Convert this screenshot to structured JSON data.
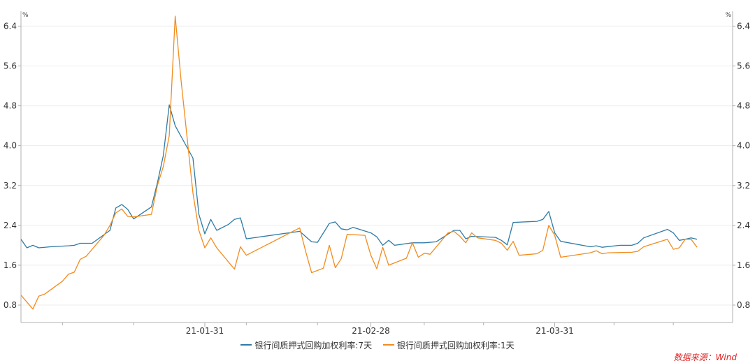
{
  "chart_data": {
    "type": "line",
    "title": "",
    "unit_left": "%",
    "unit_right": "%",
    "ylim": [
      0.45,
      6.7
    ],
    "yticks": [
      0.8,
      1.6,
      2.4,
      3.2,
      4.0,
      4.8,
      5.6,
      6.4
    ],
    "xlim": [
      "2020-12-31",
      "2021-04-30"
    ],
    "xticks": [
      {
        "date": "2021-01-31",
        "label": "21-01-31"
      },
      {
        "date": "2021-02-28",
        "label": "21-02-28"
      },
      {
        "date": "2021-03-31",
        "label": "21-03-31"
      }
    ],
    "minor_xticks": [
      "2021-01-07",
      "2021-01-19",
      "2021-02-07",
      "2021-02-19",
      "2021-03-09",
      "2021-03-19",
      "2021-04-10",
      "2021-04-20"
    ],
    "grid": true,
    "legend_position": "bottom",
    "series": [
      {
        "name": "银行间质押式回购加权利率:7天",
        "color": "#2e7ba6",
        "points": [
          [
            "2020-12-31",
            2.12
          ],
          [
            "2021-01-01",
            1.95
          ],
          [
            "2021-01-02",
            2.0
          ],
          [
            "2021-01-03",
            1.95
          ],
          [
            "2021-01-05",
            1.97
          ],
          [
            "2021-01-08",
            1.99
          ],
          [
            "2021-01-09",
            2.0
          ],
          [
            "2021-01-10",
            2.04
          ],
          [
            "2021-01-12",
            2.04
          ],
          [
            "2021-01-15",
            2.3
          ],
          [
            "2021-01-16",
            2.75
          ],
          [
            "2021-01-17",
            2.82
          ],
          [
            "2021-01-18",
            2.72
          ],
          [
            "2021-01-19",
            2.53
          ],
          [
            "2021-01-22",
            2.77
          ],
          [
            "2021-01-23",
            3.25
          ],
          [
            "2021-01-24",
            3.8
          ],
          [
            "2021-01-25",
            4.82
          ],
          [
            "2021-01-26",
            4.4
          ],
          [
            "2021-01-29",
            3.75
          ],
          [
            "2021-01-30",
            2.62
          ],
          [
            "2021-01-31",
            2.23
          ],
          [
            "2021-02-01",
            2.52
          ],
          [
            "2021-02-02",
            2.3
          ],
          [
            "2021-02-04",
            2.42
          ],
          [
            "2021-02-05",
            2.52
          ],
          [
            "2021-02-06",
            2.55
          ],
          [
            "2021-02-07",
            2.13
          ],
          [
            "2021-02-16",
            2.28
          ],
          [
            "2021-02-18",
            2.07
          ],
          [
            "2021-02-19",
            2.06
          ],
          [
            "2021-02-21",
            2.44
          ],
          [
            "2021-02-22",
            2.47
          ],
          [
            "2021-02-23",
            2.33
          ],
          [
            "2021-02-24",
            2.31
          ],
          [
            "2021-02-25",
            2.36
          ],
          [
            "2021-02-28",
            2.25
          ],
          [
            "2021-03-01",
            2.17
          ],
          [
            "2021-03-02",
            2.0
          ],
          [
            "2021-03-03",
            2.1
          ],
          [
            "2021-03-04",
            2.0
          ],
          [
            "2021-03-07",
            2.05
          ],
          [
            "2021-03-09",
            2.05
          ],
          [
            "2021-03-11",
            2.07
          ],
          [
            "2021-03-14",
            2.3
          ],
          [
            "2021-03-15",
            2.3
          ],
          [
            "2021-03-16",
            2.13
          ],
          [
            "2021-03-17",
            2.18
          ],
          [
            "2021-03-21",
            2.16
          ],
          [
            "2021-03-22",
            2.1
          ],
          [
            "2021-03-23",
            2.01
          ],
          [
            "2021-03-24",
            2.46
          ],
          [
            "2021-03-28",
            2.48
          ],
          [
            "2021-03-29",
            2.52
          ],
          [
            "2021-03-30",
            2.68
          ],
          [
            "2021-03-31",
            2.25
          ],
          [
            "2021-04-01",
            2.08
          ],
          [
            "2021-04-06",
            1.97
          ],
          [
            "2021-04-07",
            1.99
          ],
          [
            "2021-04-08",
            1.96
          ],
          [
            "2021-04-11",
            2.0
          ],
          [
            "2021-04-13",
            2.0
          ],
          [
            "2021-04-14",
            2.04
          ],
          [
            "2021-04-15",
            2.15
          ],
          [
            "2021-04-19",
            2.32
          ],
          [
            "2021-04-20",
            2.25
          ],
          [
            "2021-04-21",
            2.1
          ],
          [
            "2021-04-22",
            2.12
          ],
          [
            "2021-04-23",
            2.15
          ],
          [
            "2021-04-24",
            2.12
          ]
        ]
      },
      {
        "name": "银行间质押式回购加权利率:1天",
        "color": "#f28c1d",
        "points": [
          [
            "2020-12-31",
            1.0
          ],
          [
            "2021-01-02",
            0.72
          ],
          [
            "2021-01-03",
            0.98
          ],
          [
            "2021-01-04",
            1.02
          ],
          [
            "2021-01-07",
            1.28
          ],
          [
            "2021-01-08",
            1.42
          ],
          [
            "2021-01-09",
            1.46
          ],
          [
            "2021-01-10",
            1.72
          ],
          [
            "2021-01-11",
            1.78
          ],
          [
            "2021-01-14",
            2.2
          ],
          [
            "2021-01-15",
            2.4
          ],
          [
            "2021-01-16",
            2.65
          ],
          [
            "2021-01-17",
            2.73
          ],
          [
            "2021-01-18",
            2.58
          ],
          [
            "2021-01-19",
            2.57
          ],
          [
            "2021-01-22",
            2.62
          ],
          [
            "2021-01-23",
            3.2
          ],
          [
            "2021-01-24",
            3.58
          ],
          [
            "2021-01-25",
            4.2
          ],
          [
            "2021-01-26",
            6.6
          ],
          [
            "2021-01-27",
            5.3
          ],
          [
            "2021-01-29",
            3.05
          ],
          [
            "2021-01-30",
            2.3
          ],
          [
            "2021-01-31",
            1.95
          ],
          [
            "2021-02-01",
            2.15
          ],
          [
            "2021-02-02",
            1.95
          ],
          [
            "2021-02-05",
            1.52
          ],
          [
            "2021-02-06",
            1.97
          ],
          [
            "2021-02-07",
            1.8
          ],
          [
            "2021-02-16",
            2.35
          ],
          [
            "2021-02-17",
            1.88
          ],
          [
            "2021-02-18",
            1.45
          ],
          [
            "2021-02-20",
            1.54
          ],
          [
            "2021-02-21",
            2.0
          ],
          [
            "2021-02-22",
            1.55
          ],
          [
            "2021-02-23",
            1.73
          ],
          [
            "2021-02-24",
            2.22
          ],
          [
            "2021-02-27",
            2.2
          ],
          [
            "2021-02-28",
            1.8
          ],
          [
            "2021-03-01",
            1.53
          ],
          [
            "2021-03-02",
            1.96
          ],
          [
            "2021-03-03",
            1.6
          ],
          [
            "2021-03-06",
            1.74
          ],
          [
            "2021-03-07",
            2.05
          ],
          [
            "2021-03-08",
            1.76
          ],
          [
            "2021-03-09",
            1.84
          ],
          [
            "2021-03-10",
            1.82
          ],
          [
            "2021-03-13",
            2.25
          ],
          [
            "2021-03-14",
            2.28
          ],
          [
            "2021-03-15",
            2.18
          ],
          [
            "2021-03-16",
            2.05
          ],
          [
            "2021-03-17",
            2.25
          ],
          [
            "2021-03-18",
            2.15
          ],
          [
            "2021-03-21",
            2.1
          ],
          [
            "2021-03-22",
            2.04
          ],
          [
            "2021-03-23",
            1.9
          ],
          [
            "2021-03-24",
            2.08
          ],
          [
            "2021-03-25",
            1.8
          ],
          [
            "2021-03-28",
            1.83
          ],
          [
            "2021-03-29",
            1.9
          ],
          [
            "2021-03-30",
            2.4
          ],
          [
            "2021-03-31",
            2.2
          ],
          [
            "2021-04-01",
            1.76
          ],
          [
            "2021-04-06",
            1.85
          ],
          [
            "2021-04-07",
            1.89
          ],
          [
            "2021-04-08",
            1.83
          ],
          [
            "2021-04-09",
            1.85
          ],
          [
            "2021-04-13",
            1.86
          ],
          [
            "2021-04-14",
            1.88
          ],
          [
            "2021-04-15",
            1.97
          ],
          [
            "2021-04-19",
            2.12
          ],
          [
            "2021-04-20",
            1.92
          ],
          [
            "2021-04-21",
            1.95
          ],
          [
            "2021-04-22",
            2.12
          ],
          [
            "2021-04-23",
            2.12
          ],
          [
            "2021-04-24",
            1.96
          ]
        ]
      }
    ]
  },
  "source": "数据来源：Wind",
  "colors": {
    "axis": "#b0b0b0",
    "grid": "#ececec",
    "text": "#333333",
    "source": "#e02020"
  }
}
